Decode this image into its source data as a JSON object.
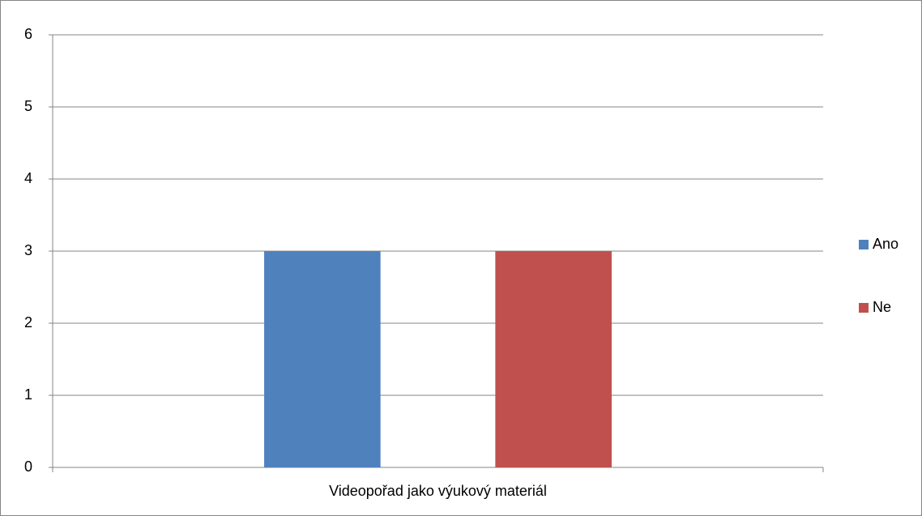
{
  "chart_data": {
    "type": "bar",
    "categories": [
      "Videopořad jako výukový materiál"
    ],
    "series": [
      {
        "name": "Ano",
        "color": "#4f81bd",
        "values": [
          3
        ]
      },
      {
        "name": "Ne",
        "color": "#c0504d",
        "values": [
          3
        ]
      }
    ],
    "ylim": [
      0,
      6
    ],
    "yticks": [
      0,
      1,
      2,
      3,
      4,
      5,
      6
    ],
    "grid": true,
    "legend": "right"
  }
}
